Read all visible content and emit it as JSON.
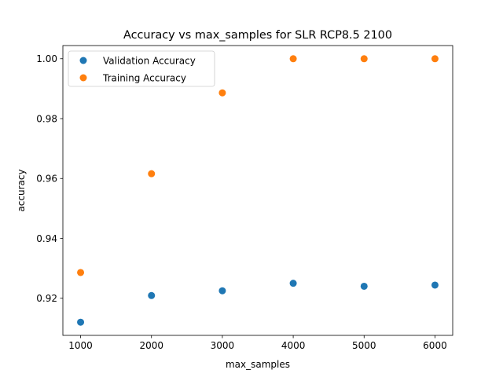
{
  "chart_data": {
    "type": "scatter",
    "title": "Accuracy vs max_samples for SLR RCP8.5 2100",
    "xlabel": "max_samples",
    "ylabel": "accuracy",
    "xlim": [
      750,
      6250
    ],
    "ylim": [
      0.9076,
      1.0044
    ],
    "xticks": [
      1000,
      2000,
      3000,
      4000,
      5000,
      6000
    ],
    "xtick_labels": [
      "1000",
      "2000",
      "3000",
      "4000",
      "5000",
      "6000"
    ],
    "yticks": [
      0.92,
      0.94,
      0.96,
      0.98,
      1.0
    ],
    "ytick_labels": [
      "0.92",
      "0.94",
      "0.96",
      "0.98",
      "1.00"
    ],
    "grid": false,
    "legend": "upper-left",
    "series": [
      {
        "name": "Validation Accuracy",
        "color": "#1f77b4",
        "x": [
          1000,
          2000,
          3000,
          4000,
          5000,
          6000
        ],
        "y": [
          0.912,
          0.9209,
          0.9225,
          0.925,
          0.924,
          0.9244
        ]
      },
      {
        "name": "Training Accuracy",
        "color": "#ff7f0e",
        "x": [
          1000,
          2000,
          3000,
          4000,
          5000,
          6000
        ],
        "y": [
          0.9286,
          0.9616,
          0.9886,
          1.0,
          1.0,
          1.0
        ]
      }
    ]
  }
}
